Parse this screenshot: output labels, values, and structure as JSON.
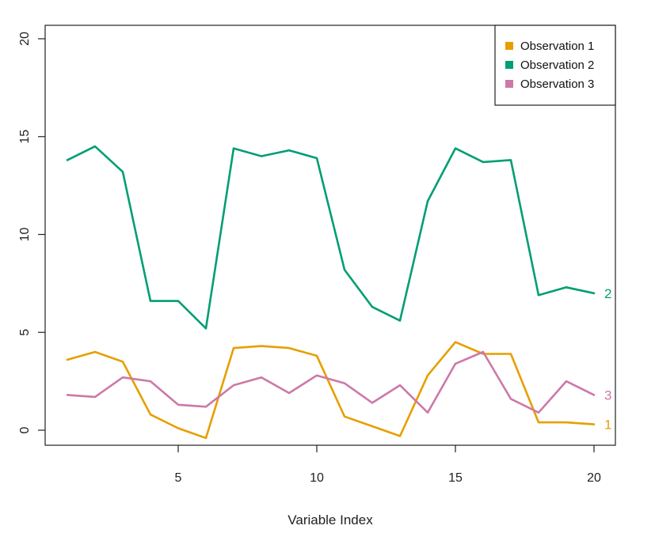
{
  "chart_data": {
    "type": "line",
    "xlabel": "Variable Index",
    "ylabel": "",
    "xlim": [
      1,
      20
    ],
    "ylim": [
      0,
      20
    ],
    "x": [
      1,
      2,
      3,
      4,
      5,
      6,
      7,
      8,
      9,
      10,
      11,
      12,
      13,
      14,
      15,
      16,
      17,
      18,
      19,
      20
    ],
    "x_ticks": [
      5,
      10,
      15,
      20
    ],
    "y_ticks": [
      0,
      5,
      10,
      15,
      20
    ],
    "grid": false,
    "legend": {
      "placement": "top-right",
      "entries": [
        "Observation 1",
        "Observation 2",
        "Observation 3"
      ]
    },
    "series": [
      {
        "name": "Observation 1",
        "end_label": "1",
        "color": "#E69F00",
        "values": [
          3.6,
          4.0,
          3.5,
          0.8,
          0.1,
          -0.4,
          4.2,
          4.3,
          4.2,
          3.8,
          0.7,
          0.2,
          -0.3,
          2.8,
          4.5,
          3.9,
          3.9,
          0.4,
          0.4,
          0.3
        ]
      },
      {
        "name": "Observation 2",
        "end_label": "2",
        "color": "#009E73",
        "values": [
          13.8,
          14.5,
          13.2,
          6.6,
          6.6,
          5.2,
          14.4,
          14.0,
          14.3,
          13.9,
          8.2,
          6.3,
          5.6,
          11.7,
          14.4,
          13.7,
          13.8,
          6.9,
          7.3,
          7.0
        ]
      },
      {
        "name": "Observation 3",
        "end_label": "3",
        "color": "#CC79A7",
        "values": [
          1.8,
          1.7,
          2.7,
          2.5,
          1.3,
          1.2,
          2.3,
          2.7,
          1.9,
          2.8,
          2.4,
          1.4,
          2.3,
          0.9,
          3.4,
          4.0,
          1.6,
          0.9,
          2.5,
          1.8
        ]
      }
    ]
  }
}
